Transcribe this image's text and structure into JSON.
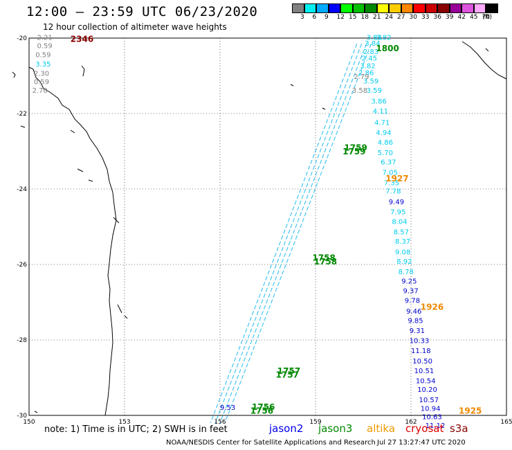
{
  "title": "12:00 – 23:59 UTC 06/23/2020",
  "subtitle": "12 hour collection of altimeter wave heights",
  "legend": {
    "unit": "(ft)",
    "bins": [
      {
        "label": "3",
        "color": "#808080"
      },
      {
        "label": "6",
        "color": "#00f0f0"
      },
      {
        "label": "9",
        "color": "#00aaff"
      },
      {
        "label": "12",
        "color": "#0000ff"
      },
      {
        "label": "15",
        "color": "#00ff00"
      },
      {
        "label": "18",
        "color": "#00c000"
      },
      {
        "label": "21",
        "color": "#008800"
      },
      {
        "label": "24",
        "color": "#ffff00"
      },
      {
        "label": "27",
        "color": "#ffcc00"
      },
      {
        "label": "30",
        "color": "#ff8800"
      },
      {
        "label": "33",
        "color": "#ff0000"
      },
      {
        "label": "36",
        "color": "#cc0000"
      },
      {
        "label": "39",
        "color": "#880000"
      },
      {
        "label": "42",
        "color": "#990099"
      },
      {
        "label": "45",
        "color": "#dd55dd"
      },
      {
        "label": "70",
        "color": "#ffaaff"
      },
      {
        "label": "",
        "color": "#000000"
      }
    ]
  },
  "axes": {
    "lon_labels": [
      "150",
      "153",
      "156",
      "159",
      "162",
      "165"
    ],
    "lat_labels": [
      "-20",
      "-22",
      "-24",
      "-26",
      "-28",
      "-30"
    ]
  },
  "map_data": {
    "lon_range": [
      150,
      165
    ],
    "lat_range": [
      -30,
      -20
    ],
    "time_labels": [
      {
        "text": "2346",
        "lon": 151.3,
        "lat": -20.1,
        "color": "#880000"
      },
      {
        "text": "1800",
        "lon": 160.9,
        "lat": -20.35,
        "color": "#008800"
      },
      {
        "text": "1759",
        "lon": 159.9,
        "lat": -22.98,
        "color": "#008800"
      },
      {
        "text": "1759",
        "lon": 159.85,
        "lat": -23.08,
        "color": "#008800"
      },
      {
        "text": "1927",
        "lon": 161.2,
        "lat": -23.8,
        "color": "#ee8800"
      },
      {
        "text": "1758",
        "lon": 158.9,
        "lat": -25.9,
        "color": "#008800"
      },
      {
        "text": "1758",
        "lon": 158.95,
        "lat": -26.0,
        "color": "#008800"
      },
      {
        "text": "1926",
        "lon": 162.3,
        "lat": -27.2,
        "color": "#ee8800"
      },
      {
        "text": "1757",
        "lon": 157.8,
        "lat": -28.9,
        "color": "#008800"
      },
      {
        "text": "1757",
        "lon": 157.75,
        "lat": -29.0,
        "color": "#008800"
      },
      {
        "text": "1756",
        "lon": 157.0,
        "lat": -29.85,
        "color": "#008800"
      },
      {
        "text": "1756",
        "lon": 156.95,
        "lat": -29.95,
        "color": "#008800"
      },
      {
        "text": "1925",
        "lon": 163.5,
        "lat": -29.95,
        "color": "#ee8800"
      }
    ],
    "observations": [
      {
        "text": "2.21",
        "lon": 150.25,
        "lat": -20.05,
        "color": "#808080"
      },
      {
        "text": "0.59",
        "lon": 150.25,
        "lat": -20.27,
        "color": "#808080"
      },
      {
        "text": "0.59",
        "lon": 150.2,
        "lat": -20.5,
        "color": "#808080"
      },
      {
        "text": "3.35",
        "lon": 150.2,
        "lat": -20.75,
        "color": "#00ccee"
      },
      {
        "text": "2.30",
        "lon": 150.15,
        "lat": -21.0,
        "color": "#808080"
      },
      {
        "text": "0.59",
        "lon": 150.15,
        "lat": -21.22,
        "color": "#808080"
      },
      {
        "text": "2.70",
        "lon": 150.1,
        "lat": -21.45,
        "color": "#808080"
      },
      {
        "text": "3.83",
        "lon": 160.6,
        "lat": -20.05,
        "color": "#00ccee"
      },
      {
        "text": "3.82",
        "lon": 160.9,
        "lat": -20.05,
        "color": "#00ccee"
      },
      {
        "text": "3.84",
        "lon": 160.55,
        "lat": -20.2,
        "color": "#00ccee"
      },
      {
        "text": "2.83",
        "lon": 160.5,
        "lat": -20.42,
        "color": "#00ccee"
      },
      {
        "text": "2.45",
        "lon": 160.45,
        "lat": -20.6,
        "color": "#00ccee"
      },
      {
        "text": "3.82",
        "lon": 160.4,
        "lat": -20.8,
        "color": "#00ccee"
      },
      {
        "text": "2.86",
        "lon": 160.35,
        "lat": -20.98,
        "color": "#00ccee"
      },
      {
        "text": "2.79",
        "lon": 160.2,
        "lat": -21.08,
        "color": "#808080"
      },
      {
        "text": "3.59",
        "lon": 160.5,
        "lat": -21.2,
        "color": "#00ccee"
      },
      {
        "text": "3.59",
        "lon": 160.6,
        "lat": -21.45,
        "color": "#00ccee"
      },
      {
        "text": "3.58",
        "lon": 160.15,
        "lat": -21.45,
        "color": "#808080"
      },
      {
        "text": "3.86",
        "lon": 160.75,
        "lat": -21.73,
        "color": "#00ccee"
      },
      {
        "text": "4.11",
        "lon": 160.8,
        "lat": -22.0,
        "color": "#00ccee"
      },
      {
        "text": "4.71",
        "lon": 160.85,
        "lat": -22.3,
        "color": "#00ccee"
      },
      {
        "text": "4.94",
        "lon": 160.9,
        "lat": -22.57,
        "color": "#00ccee"
      },
      {
        "text": "4.86",
        "lon": 160.95,
        "lat": -22.83,
        "color": "#00ccee"
      },
      {
        "text": "5.70",
        "lon": 160.95,
        "lat": -23.1,
        "color": "#00ccee"
      },
      {
        "text": "6.37",
        "lon": 161.05,
        "lat": -23.35,
        "color": "#00ccee"
      },
      {
        "text": "7.05",
        "lon": 161.1,
        "lat": -23.62,
        "color": "#00ccee"
      },
      {
        "text": "7.35",
        "lon": 161.15,
        "lat": -23.9,
        "color": "#00ccee"
      },
      {
        "text": "7.78",
        "lon": 161.2,
        "lat": -24.12,
        "color": "#00ccee"
      },
      {
        "text": "9.49",
        "lon": 161.3,
        "lat": -24.4,
        "color": "#0000cc"
      },
      {
        "text": "7.95",
        "lon": 161.35,
        "lat": -24.67,
        "color": "#00ccee"
      },
      {
        "text": "8.04",
        "lon": 161.4,
        "lat": -24.93,
        "color": "#00ccee"
      },
      {
        "text": "8.57",
        "lon": 161.45,
        "lat": -25.2,
        "color": "#00ccee"
      },
      {
        "text": "8.37",
        "lon": 161.5,
        "lat": -25.45,
        "color": "#00ccee"
      },
      {
        "text": "9.08",
        "lon": 161.5,
        "lat": -25.73,
        "color": "#00ccee"
      },
      {
        "text": "8.92",
        "lon": 161.55,
        "lat": -25.98,
        "color": "#00ccee"
      },
      {
        "text": "8.78",
        "lon": 161.6,
        "lat": -26.26,
        "color": "#00ccee"
      },
      {
        "text": "9.25",
        "lon": 161.7,
        "lat": -26.5,
        "color": "#0000cc"
      },
      {
        "text": "9.37",
        "lon": 161.75,
        "lat": -26.76,
        "color": "#0000cc"
      },
      {
        "text": "9.78",
        "lon": 161.8,
        "lat": -27.02,
        "color": "#0000cc"
      },
      {
        "text": "9.46",
        "lon": 161.85,
        "lat": -27.3,
        "color": "#0000cc"
      },
      {
        "text": "9.85",
        "lon": 161.9,
        "lat": -27.55,
        "color": "#0000cc"
      },
      {
        "text": "9.31",
        "lon": 161.95,
        "lat": -27.82,
        "color": "#0000cc"
      },
      {
        "text": "10.33",
        "lon": 161.95,
        "lat": -28.08,
        "color": "#0000cc"
      },
      {
        "text": "11.18",
        "lon": 162.0,
        "lat": -28.35,
        "color": "#0000cc"
      },
      {
        "text": "10.50",
        "lon": 162.05,
        "lat": -28.62,
        "color": "#0000cc"
      },
      {
        "text": "10.51",
        "lon": 162.1,
        "lat": -28.88,
        "color": "#0000cc"
      },
      {
        "text": "10.54",
        "lon": 162.15,
        "lat": -29.15,
        "color": "#0000cc"
      },
      {
        "text": "10.20",
        "lon": 162.2,
        "lat": -29.38,
        "color": "#0000cc"
      },
      {
        "text": "10.57",
        "lon": 162.25,
        "lat": -29.65,
        "color": "#0000cc"
      },
      {
        "text": "10.94",
        "lon": 162.3,
        "lat": -29.88,
        "color": "#0000cc"
      },
      {
        "text": "10.63",
        "lon": 162.35,
        "lat": -30.1,
        "color": "#0000cc"
      },
      {
        "text": "11.12",
        "lon": 162.45,
        "lat": -30.33,
        "color": "#0000cc"
      },
      {
        "text": "9.53",
        "lon": 156.0,
        "lat": -29.85,
        "color": "#0000cc"
      }
    ]
  },
  "footer": {
    "note": "note: 1) Time is in UTC; 2) SWH is in feet",
    "satellites": [
      {
        "name": "jason2",
        "color": "#0000ee"
      },
      {
        "name": "jason3",
        "color": "#008800"
      },
      {
        "name": "altika",
        "color": "#ee9900"
      },
      {
        "name": "cryosat",
        "color": "#dd0000"
      },
      {
        "name": "s3a",
        "color": "#880000"
      }
    ],
    "credit": "NOAA/NESDIS Center for Satellite Applications and Research",
    "timestamp": "Jul 27 13:27:47 UTC 2020"
  }
}
